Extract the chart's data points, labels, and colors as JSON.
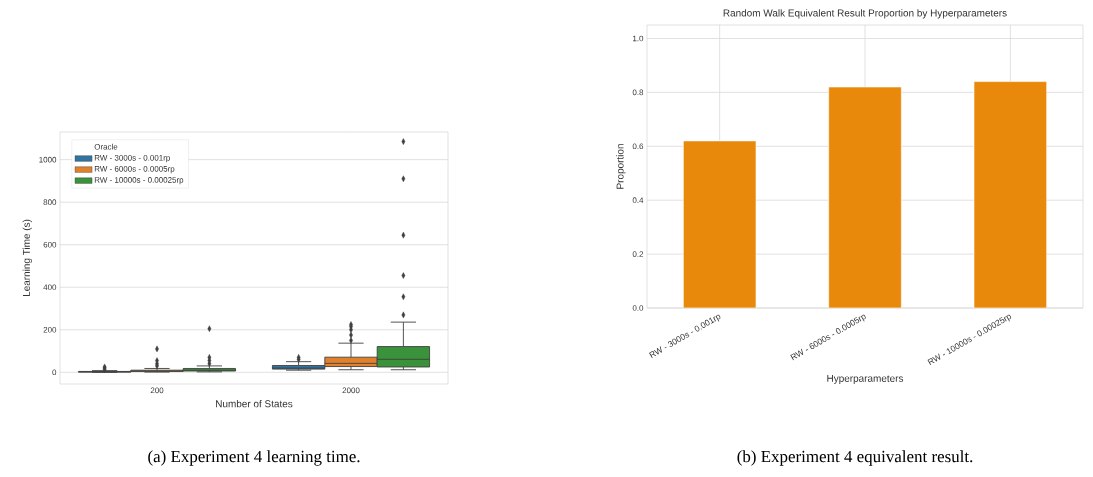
{
  "chart_data": [
    {
      "type": "box",
      "xlabel": "Number of States",
      "ylabel": "Learning Time (s)",
      "legend_title": "Oracle",
      "categories": [
        "200",
        "2000"
      ],
      "series": [
        {
          "name": "RW - 3000s - 0.001rp",
          "color": "#3274a1",
          "boxes": [
            {
              "low": 0,
              "q1": 1,
              "median": 2,
              "q3": 4,
              "high": 8,
              "outliers": [
                12,
                20,
                25
              ]
            },
            {
              "low": 10,
              "q1": 15,
              "median": 20,
              "q3": 32,
              "high": 50,
              "outliers": [
                60,
                70
              ]
            }
          ]
        },
        {
          "name": "RW - 6000s - 0.0005rp",
          "color": "#e1812c",
          "boxes": [
            {
              "low": 1,
              "q1": 4,
              "median": 6,
              "q3": 10,
              "high": 18,
              "outliers": [
                30,
                40,
                55,
                110
              ]
            },
            {
              "low": 12,
              "q1": 27,
              "median": 42,
              "q3": 71,
              "high": 137,
              "outliers": [
                150,
                175,
                200,
                215,
                225
              ]
            }
          ]
        },
        {
          "name": "RW - 10000s - 0.00025rp",
          "color": "#3a923a",
          "boxes": [
            {
              "low": 2,
              "q1": 6,
              "median": 10,
              "q3": 18,
              "high": 30,
              "outliers": [
                40,
                55,
                70,
                205
              ]
            },
            {
              "low": 12,
              "q1": 25,
              "median": 61,
              "q3": 121,
              "high": 236,
              "outliers": [
                270,
                355,
                455,
                645,
                910,
                1085
              ]
            }
          ]
        }
      ],
      "ylim": [
        -55,
        1130
      ],
      "yticks": [
        0,
        200,
        400,
        600,
        800,
        1000
      ],
      "grid": "y",
      "legend": "top left",
      "marker": "diamond",
      "annotations": [
        "(a) Experiment 4 learning time."
      ]
    },
    {
      "type": "bar",
      "title": "Random Walk Equivalent Result Proportion by Hyperparameters",
      "xlabel": "Hyperparameters",
      "ylabel": "Proportion",
      "categories": [
        "RW - 3000s - 0.001rp",
        "RW - 6000s - 0.0005rp",
        "RW - 10000s - 0.00025rp"
      ],
      "values": [
        0.62,
        0.82,
        0.84
      ],
      "color": "#e8890c",
      "ylim": [
        0,
        1.05
      ],
      "yticks": [
        {
          "value": 0,
          "label": "0.0"
        },
        0.2,
        0.4,
        0.6,
        0.8,
        {
          "value": 1,
          "label": "1.0"
        }
      ],
      "grid": true,
      "annotations": [
        "(b) Experiment 4 equivalent result."
      ]
    }
  ]
}
